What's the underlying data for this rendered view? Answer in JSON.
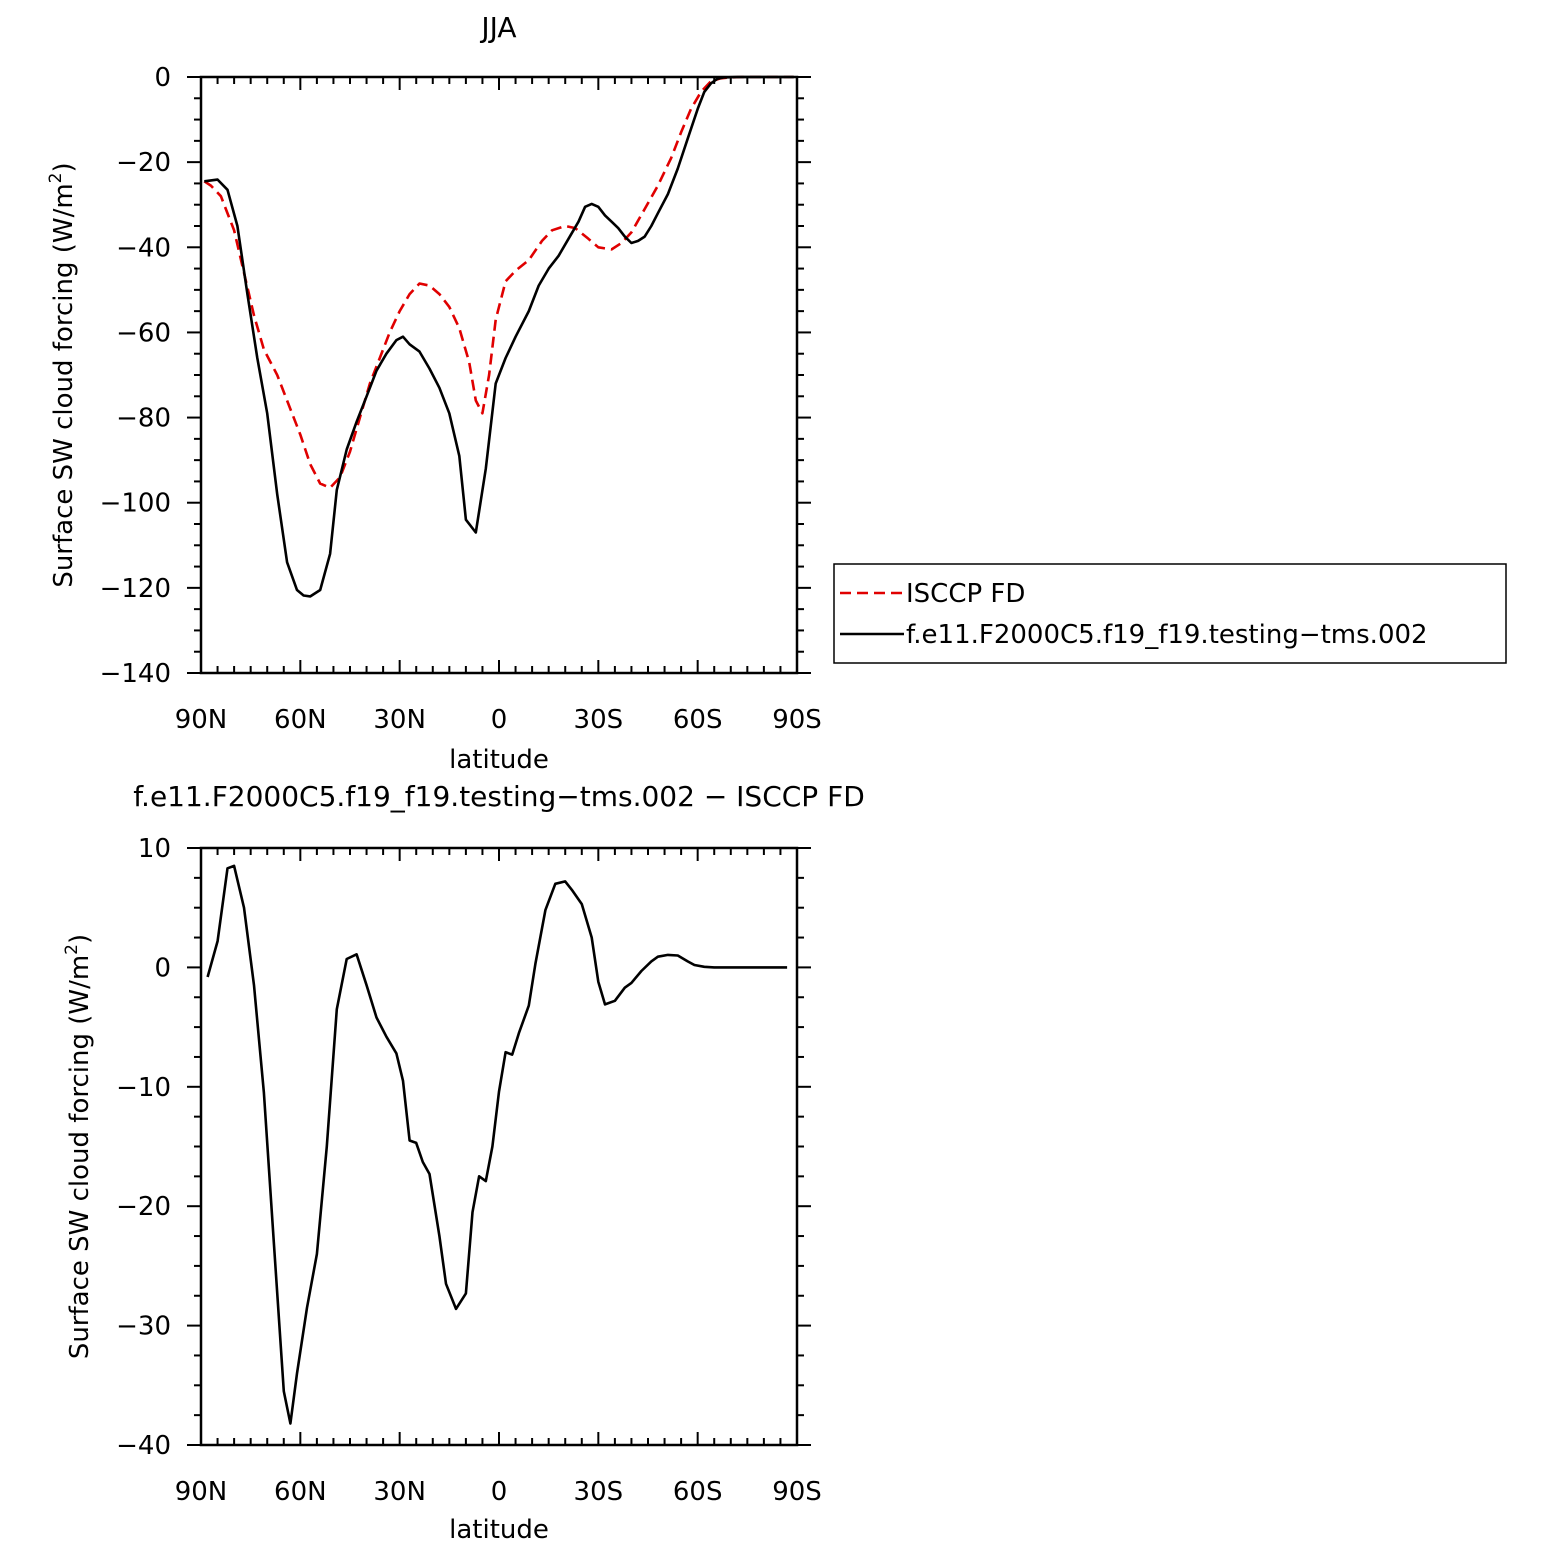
{
  "chart_data": [
    {
      "type": "line",
      "title": "JJA",
      "xlabel": "latitude",
      "ylabel": "Surface SW cloud forcing (W/m",
      "ylabel_sup": "2",
      "ylabel_close": ")",
      "x_range": [
        90,
        -90
      ],
      "x_ticks": [
        {
          "value": 90,
          "label": "90N"
        },
        {
          "value": 60,
          "label": "60N"
        },
        {
          "value": 30,
          "label": "30N"
        },
        {
          "value": 0,
          "label": "0"
        },
        {
          "value": -30,
          "label": "30S"
        },
        {
          "value": -60,
          "label": "60S"
        },
        {
          "value": -90,
          "label": "90S"
        }
      ],
      "ylim": [
        -140,
        0
      ],
      "y_ticks": [
        {
          "value": 0,
          "label": "0"
        },
        {
          "value": -20,
          "label": "−20"
        },
        {
          "value": -40,
          "label": "−40"
        },
        {
          "value": -60,
          "label": "−60"
        },
        {
          "value": -80,
          "label": "−80"
        },
        {
          "value": -100,
          "label": "−100"
        },
        {
          "value": -120,
          "label": "−120"
        },
        {
          "value": -140,
          "label": "−140"
        }
      ],
      "grid": false,
      "legend": {
        "placement": "right",
        "entries": [
          "ISCCP FD",
          "f.e11.F2000C5.f19_f19.testing−tms.002"
        ]
      },
      "series": [
        {
          "name": "ISCCP FD",
          "color": "#e00000",
          "dash": "dashed",
          "x": [
            89,
            87,
            84,
            80,
            77,
            74,
            71,
            67,
            63,
            60,
            57,
            54,
            51,
            48,
            45,
            42,
            39,
            36,
            33,
            30,
            27,
            24,
            21,
            18,
            15,
            12,
            9,
            7,
            5,
            3,
            1,
            -2,
            -5,
            -9,
            -13,
            -16,
            -20,
            -23,
            -27,
            -30,
            -34,
            -37,
            -40,
            -44,
            -48,
            -52,
            -55,
            -58,
            -61,
            -64,
            -67,
            -70,
            -74,
            -78,
            -82,
            -86,
            -89
          ],
          "y": [
            -24.5,
            -25.5,
            -28,
            -36,
            -46,
            -56,
            -64,
            -70,
            -78,
            -84,
            -91,
            -95.5,
            -96.5,
            -94,
            -88,
            -80,
            -72,
            -66,
            -60,
            -55,
            -51,
            -48.5,
            -49,
            -51,
            -54,
            -59,
            -67,
            -76,
            -79,
            -70,
            -57,
            -48,
            -45.5,
            -43,
            -38.5,
            -36,
            -35,
            -35.5,
            -38,
            -40,
            -40.5,
            -39,
            -36.5,
            -31,
            -25.5,
            -19,
            -13,
            -7.5,
            -3.5,
            -1,
            -0.3,
            -0.1,
            0,
            0,
            0,
            0,
            0
          ]
        },
        {
          "name": "f.e11.F2000C5.f19_f19.testing−tms.002",
          "color": "#000000",
          "dash": "solid",
          "x": [
            89,
            87,
            85,
            82,
            79,
            76,
            73,
            70,
            67,
            64,
            61,
            59,
            57,
            54,
            51,
            49,
            46,
            43,
            40,
            37,
            34,
            31,
            29,
            27,
            24,
            21,
            18,
            15,
            12,
            10,
            7,
            4,
            1,
            -2,
            -5,
            -9,
            -12,
            -15,
            -18,
            -21,
            -24,
            -26,
            -28,
            -30,
            -32,
            -34,
            -36,
            -38,
            -40,
            -42,
            -44,
            -46,
            -48,
            -51,
            -54,
            -57,
            -60,
            -62,
            -64,
            -66,
            -68,
            -72,
            -76,
            -80,
            -85,
            -89
          ],
          "y": [
            -24.5,
            -24.3,
            -24.1,
            -26.5,
            -35,
            -51,
            -66,
            -79,
            -98,
            -114,
            -120.5,
            -121.8,
            -122,
            -120.5,
            -112,
            -97,
            -87.5,
            -81,
            -75,
            -69,
            -65,
            -61.8,
            -61,
            -62.8,
            -64.5,
            -68.5,
            -73,
            -79,
            -89,
            -104,
            -107,
            -92,
            -72,
            -66,
            -61,
            -55,
            -49,
            -45,
            -42,
            -38,
            -34,
            -30.5,
            -29.8,
            -30.5,
            -32.5,
            -34,
            -35.5,
            -37.5,
            -39,
            -38.5,
            -37.5,
            -35,
            -32,
            -27.5,
            -21.5,
            -14.5,
            -7.5,
            -3.5,
            -1.5,
            -0.4,
            -0.1,
            0,
            0,
            0,
            0,
            0
          ]
        }
      ]
    },
    {
      "type": "line",
      "title": "f.e11.F2000C5.f19_f19.testing−tms.002 − ISCCP FD",
      "xlabel": "latitude",
      "ylabel": "Surface SW cloud forcing (W/m",
      "ylabel_sup": "2",
      "ylabel_close": ")",
      "x_range": [
        90,
        -90
      ],
      "x_ticks": [
        {
          "value": 90,
          "label": "90N"
        },
        {
          "value": 60,
          "label": "60N"
        },
        {
          "value": 30,
          "label": "30N"
        },
        {
          "value": 0,
          "label": "0"
        },
        {
          "value": -30,
          "label": "30S"
        },
        {
          "value": -60,
          "label": "60S"
        },
        {
          "value": -90,
          "label": "90S"
        }
      ],
      "ylim": [
        -40,
        10
      ],
      "y_ticks": [
        {
          "value": 10,
          "label": "10"
        },
        {
          "value": 0,
          "label": "0"
        },
        {
          "value": -10,
          "label": "−10"
        },
        {
          "value": -20,
          "label": "−20"
        },
        {
          "value": -30,
          "label": "−30"
        },
        {
          "value": -40,
          "label": "−40"
        }
      ],
      "grid": false,
      "series": [
        {
          "color": "#000000",
          "dash": "solid",
          "x": [
            88,
            85,
            82,
            80,
            77,
            74,
            71,
            68,
            65,
            63,
            61,
            58,
            55,
            52,
            49,
            46,
            43,
            40,
            37,
            34,
            31,
            29,
            27,
            25,
            23,
            21,
            18,
            16,
            13,
            10,
            8,
            6,
            4,
            2,
            0,
            -2,
            -4,
            -6,
            -9,
            -11,
            -14,
            -17,
            -20,
            -22,
            -25,
            -28,
            -30,
            -32,
            -35,
            -38,
            -40,
            -43,
            -46,
            -48,
            -51,
            -54,
            -57,
            -59,
            -62,
            -65,
            -68,
            -71,
            -75,
            -79,
            -83,
            -87
          ],
          "y": [
            -0.8,
            2.2,
            8.3,
            8.5,
            5,
            -1.5,
            -10.5,
            -23,
            -35.5,
            -38.2,
            -34,
            -28.5,
            -24,
            -15,
            -3.5,
            0.7,
            1.1,
            -1.5,
            -4.2,
            -5.8,
            -7.2,
            -9.5,
            -14.5,
            -14.7,
            -16.3,
            -17.3,
            -22.5,
            -26.5,
            -28.6,
            -27.3,
            -20.5,
            -17.5,
            -17.9,
            -15,
            -10.4,
            -7.1,
            -7.3,
            -5.5,
            -3.2,
            0.3,
            4.8,
            7,
            7.2,
            6.5,
            5.3,
            2.5,
            -1.2,
            -3.1,
            -2.8,
            -1.7,
            -1.3,
            -0.3,
            0.5,
            0.9,
            1.05,
            1,
            0.5,
            0.2,
            0.05,
            0,
            0,
            0,
            0,
            0,
            0,
            0
          ]
        }
      ]
    }
  ]
}
